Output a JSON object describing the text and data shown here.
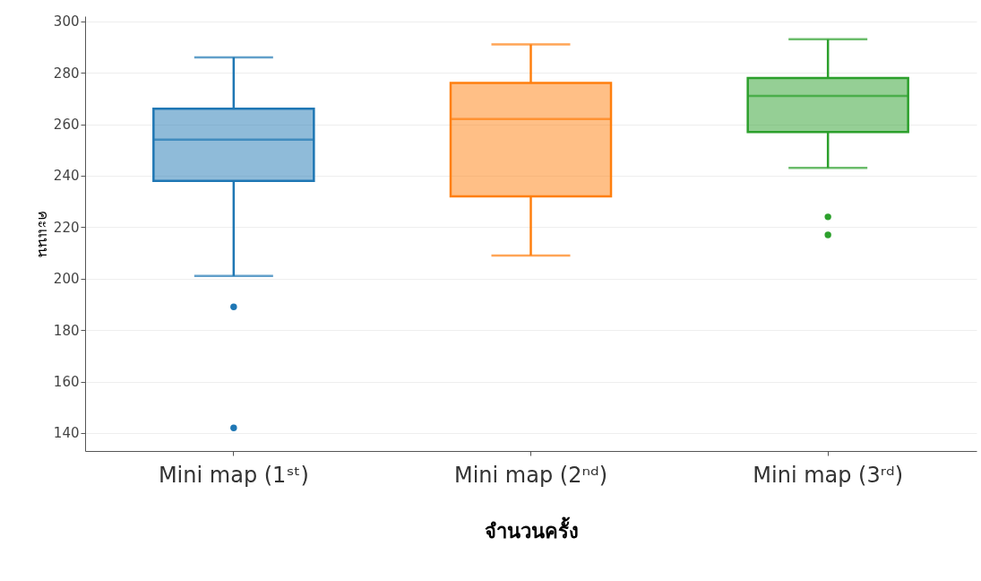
{
  "chart_data": {
    "type": "box",
    "xlabel": "จำนวนครั้ง",
    "ylabel": "คะแนน",
    "categories": [
      "Mini map (1ˢᵗ)",
      "Mini map (2ⁿᵈ)",
      "Mini map (3ʳᵈ)"
    ],
    "colors": [
      "#1f77b4",
      "#ff7f0e",
      "#2ca02c"
    ],
    "boxes": [
      {
        "low": 201,
        "q1": 238,
        "median": 254,
        "q3": 266,
        "high": 286,
        "outliers": [
          189,
          142
        ]
      },
      {
        "low": 209,
        "q1": 232,
        "median": 262,
        "q3": 276,
        "high": 291
      },
      {
        "low": 243,
        "q1": 257,
        "median": 271,
        "q3": 278,
        "high": 293,
        "outliers": [
          224,
          217
        ]
      }
    ],
    "ylim": [
      133,
      302
    ],
    "yticks": [
      140,
      160,
      180,
      200,
      220,
      240,
      260,
      280,
      300
    ],
    "grid": "y"
  }
}
